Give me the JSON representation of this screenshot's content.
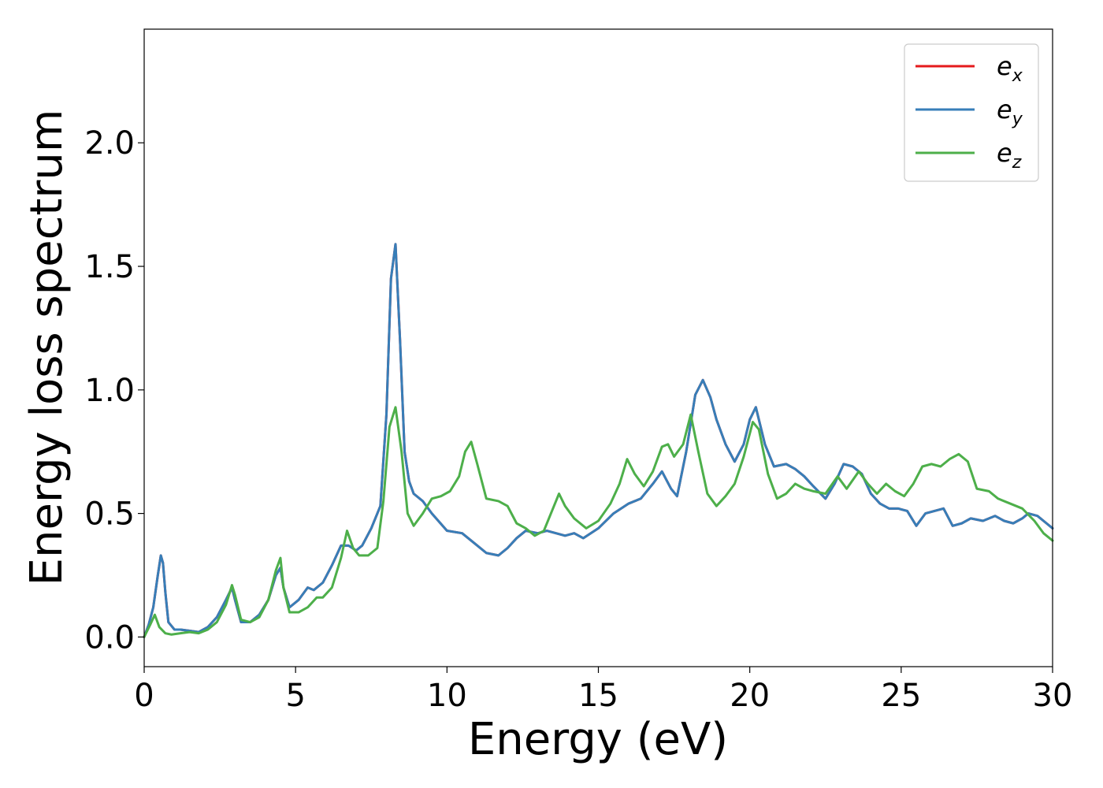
{
  "chart_data": {
    "type": "line",
    "title": "",
    "xlabel": "Energy (eV)",
    "ylabel": "Energy loss spectrum",
    "xlim": [
      0,
      30
    ],
    "ylim": [
      -0.12,
      2.46
    ],
    "xticks": [
      0,
      5,
      10,
      15,
      20,
      25,
      30
    ],
    "xtick_labels": [
      "0",
      "5",
      "10",
      "15",
      "20",
      "25",
      "30"
    ],
    "yticks": [
      0.0,
      0.5,
      1.0,
      1.5,
      2.0
    ],
    "ytick_labels": [
      "0.0",
      "0.5",
      "1.0",
      "1.5",
      "2.0"
    ],
    "grid": false,
    "legend_position": "top-right",
    "colors": {
      "ex": "#e41a1c",
      "ey": "#377eb8",
      "ez": "#4daf4a"
    },
    "legend": [
      {
        "base": "e",
        "sub": "x",
        "color": "#e41a1c"
      },
      {
        "base": "e",
        "sub": "y",
        "color": "#377eb8"
      },
      {
        "base": "e",
        "sub": "z",
        "color": "#4daf4a"
      }
    ],
    "series": [
      {
        "key": "ex",
        "color": "#e41a1c",
        "x": [
          0,
          0.15,
          0.3,
          0.45,
          0.55,
          0.62,
          0.7,
          0.8,
          1.0,
          1.2,
          1.5,
          1.8,
          2.1,
          2.4,
          2.7,
          2.9,
          3.0,
          3.2,
          3.5,
          3.8,
          4.1,
          4.35,
          4.5,
          4.6,
          4.8,
          5.1,
          5.4,
          5.6,
          5.9,
          6.2,
          6.5,
          6.75,
          7.0,
          7.2,
          7.5,
          7.8,
          8.0,
          8.15,
          8.3,
          8.45,
          8.6,
          8.75,
          8.9,
          9.2,
          9.5,
          10.0,
          10.5,
          10.9,
          11.3,
          11.7,
          12.0,
          12.3,
          12.6,
          13.0,
          13.3,
          13.6,
          13.9,
          14.2,
          14.5,
          15.0,
          15.5,
          16.0,
          16.4,
          16.8,
          17.1,
          17.4,
          17.6,
          17.9,
          18.2,
          18.45,
          18.7,
          18.9,
          19.2,
          19.5,
          19.8,
          20.0,
          20.2,
          20.5,
          20.8,
          21.2,
          21.5,
          21.8,
          22.1,
          22.5,
          22.8,
          23.1,
          23.4,
          23.7,
          24.0,
          24.3,
          24.6,
          24.9,
          25.2,
          25.5,
          25.8,
          26.1,
          26.4,
          26.7,
          27.0,
          27.3,
          27.7,
          28.1,
          28.4,
          28.7,
          29.0,
          29.2,
          29.5,
          29.8,
          30.0
        ],
        "y": [
          0,
          0.05,
          0.12,
          0.25,
          0.33,
          0.3,
          0.18,
          0.06,
          0.03,
          0.03,
          0.025,
          0.02,
          0.04,
          0.08,
          0.15,
          0.2,
          0.15,
          0.06,
          0.06,
          0.09,
          0.15,
          0.25,
          0.28,
          0.2,
          0.12,
          0.15,
          0.2,
          0.19,
          0.22,
          0.29,
          0.37,
          0.37,
          0.35,
          0.37,
          0.44,
          0.53,
          0.9,
          1.45,
          1.59,
          1.2,
          0.75,
          0.63,
          0.58,
          0.55,
          0.5,
          0.43,
          0.42,
          0.38,
          0.34,
          0.33,
          0.36,
          0.4,
          0.43,
          0.42,
          0.43,
          0.42,
          0.41,
          0.42,
          0.4,
          0.44,
          0.5,
          0.54,
          0.56,
          0.62,
          0.67,
          0.6,
          0.57,
          0.75,
          0.98,
          1.04,
          0.97,
          0.88,
          0.78,
          0.71,
          0.78,
          0.88,
          0.93,
          0.78,
          0.69,
          0.7,
          0.68,
          0.65,
          0.61,
          0.56,
          0.62,
          0.7,
          0.69,
          0.66,
          0.58,
          0.54,
          0.52,
          0.52,
          0.51,
          0.45,
          0.5,
          0.51,
          0.52,
          0.45,
          0.46,
          0.48,
          0.47,
          0.49,
          0.47,
          0.46,
          0.48,
          0.5,
          0.49,
          0.46,
          0.44
        ]
      },
      {
        "key": "ey",
        "color": "#377eb8",
        "x": [
          0,
          0.15,
          0.3,
          0.45,
          0.55,
          0.62,
          0.7,
          0.8,
          1.0,
          1.2,
          1.5,
          1.8,
          2.1,
          2.4,
          2.7,
          2.9,
          3.0,
          3.2,
          3.5,
          3.8,
          4.1,
          4.35,
          4.5,
          4.6,
          4.8,
          5.1,
          5.4,
          5.6,
          5.9,
          6.2,
          6.5,
          6.75,
          7.0,
          7.2,
          7.5,
          7.8,
          8.0,
          8.15,
          8.3,
          8.45,
          8.6,
          8.75,
          8.9,
          9.2,
          9.5,
          10.0,
          10.5,
          10.9,
          11.3,
          11.7,
          12.0,
          12.3,
          12.6,
          13.0,
          13.3,
          13.6,
          13.9,
          14.2,
          14.5,
          15.0,
          15.5,
          16.0,
          16.4,
          16.8,
          17.1,
          17.4,
          17.6,
          17.9,
          18.2,
          18.45,
          18.7,
          18.9,
          19.2,
          19.5,
          19.8,
          20.0,
          20.2,
          20.5,
          20.8,
          21.2,
          21.5,
          21.8,
          22.1,
          22.5,
          22.8,
          23.1,
          23.4,
          23.7,
          24.0,
          24.3,
          24.6,
          24.9,
          25.2,
          25.5,
          25.8,
          26.1,
          26.4,
          26.7,
          27.0,
          27.3,
          27.7,
          28.1,
          28.4,
          28.7,
          29.0,
          29.2,
          29.5,
          29.8,
          30.0
        ],
        "y": [
          0,
          0.05,
          0.12,
          0.25,
          0.33,
          0.3,
          0.18,
          0.06,
          0.03,
          0.03,
          0.025,
          0.02,
          0.04,
          0.08,
          0.15,
          0.2,
          0.15,
          0.06,
          0.06,
          0.09,
          0.15,
          0.25,
          0.28,
          0.2,
          0.12,
          0.15,
          0.2,
          0.19,
          0.22,
          0.29,
          0.37,
          0.37,
          0.35,
          0.37,
          0.44,
          0.53,
          0.9,
          1.45,
          1.59,
          1.2,
          0.75,
          0.63,
          0.58,
          0.55,
          0.5,
          0.43,
          0.42,
          0.38,
          0.34,
          0.33,
          0.36,
          0.4,
          0.43,
          0.42,
          0.43,
          0.42,
          0.41,
          0.42,
          0.4,
          0.44,
          0.5,
          0.54,
          0.56,
          0.62,
          0.67,
          0.6,
          0.57,
          0.75,
          0.98,
          1.04,
          0.97,
          0.88,
          0.78,
          0.71,
          0.78,
          0.88,
          0.93,
          0.78,
          0.69,
          0.7,
          0.68,
          0.65,
          0.61,
          0.56,
          0.62,
          0.7,
          0.69,
          0.66,
          0.58,
          0.54,
          0.52,
          0.52,
          0.51,
          0.45,
          0.5,
          0.51,
          0.52,
          0.45,
          0.46,
          0.48,
          0.47,
          0.49,
          0.47,
          0.46,
          0.48,
          0.5,
          0.49,
          0.46,
          0.44
        ]
      },
      {
        "key": "ez",
        "color": "#4daf4a",
        "x": [
          0,
          0.2,
          0.35,
          0.5,
          0.7,
          0.9,
          1.2,
          1.5,
          1.8,
          2.1,
          2.4,
          2.7,
          2.9,
          3.0,
          3.2,
          3.5,
          3.8,
          4.1,
          4.35,
          4.5,
          4.6,
          4.8,
          5.1,
          5.4,
          5.7,
          5.9,
          6.2,
          6.5,
          6.7,
          6.9,
          7.1,
          7.4,
          7.7,
          7.9,
          8.1,
          8.3,
          8.5,
          8.7,
          8.9,
          9.2,
          9.5,
          9.8,
          10.1,
          10.4,
          10.6,
          10.8,
          11.0,
          11.3,
          11.7,
          12.0,
          12.3,
          12.6,
          12.9,
          13.2,
          13.5,
          13.7,
          13.9,
          14.2,
          14.6,
          15.0,
          15.4,
          15.7,
          15.95,
          16.2,
          16.5,
          16.8,
          17.1,
          17.3,
          17.5,
          17.8,
          18.05,
          18.3,
          18.6,
          18.9,
          19.2,
          19.5,
          19.8,
          20.1,
          20.3,
          20.6,
          20.9,
          21.2,
          21.5,
          21.8,
          22.1,
          22.5,
          22.9,
          23.2,
          23.6,
          23.9,
          24.2,
          24.5,
          24.8,
          25.1,
          25.4,
          25.7,
          26.0,
          26.3,
          26.6,
          26.9,
          27.2,
          27.5,
          27.9,
          28.2,
          28.6,
          29.0,
          29.4,
          29.7,
          30.0
        ],
        "y": [
          0,
          0.05,
          0.09,
          0.04,
          0.015,
          0.01,
          0.015,
          0.02,
          0.015,
          0.03,
          0.06,
          0.13,
          0.21,
          0.17,
          0.07,
          0.06,
          0.08,
          0.15,
          0.27,
          0.32,
          0.2,
          0.1,
          0.1,
          0.12,
          0.16,
          0.16,
          0.2,
          0.32,
          0.43,
          0.36,
          0.33,
          0.33,
          0.36,
          0.55,
          0.85,
          0.93,
          0.75,
          0.5,
          0.45,
          0.5,
          0.56,
          0.57,
          0.59,
          0.65,
          0.75,
          0.79,
          0.7,
          0.56,
          0.55,
          0.53,
          0.46,
          0.44,
          0.41,
          0.43,
          0.52,
          0.58,
          0.53,
          0.48,
          0.44,
          0.47,
          0.54,
          0.62,
          0.72,
          0.66,
          0.61,
          0.67,
          0.77,
          0.78,
          0.73,
          0.78,
          0.9,
          0.75,
          0.58,
          0.53,
          0.57,
          0.62,
          0.73,
          0.87,
          0.84,
          0.66,
          0.56,
          0.58,
          0.62,
          0.6,
          0.59,
          0.58,
          0.65,
          0.6,
          0.67,
          0.62,
          0.58,
          0.62,
          0.59,
          0.57,
          0.62,
          0.69,
          0.7,
          0.69,
          0.72,
          0.74,
          0.71,
          0.6,
          0.59,
          0.56,
          0.54,
          0.52,
          0.47,
          0.42,
          0.39
        ]
      }
    ]
  }
}
